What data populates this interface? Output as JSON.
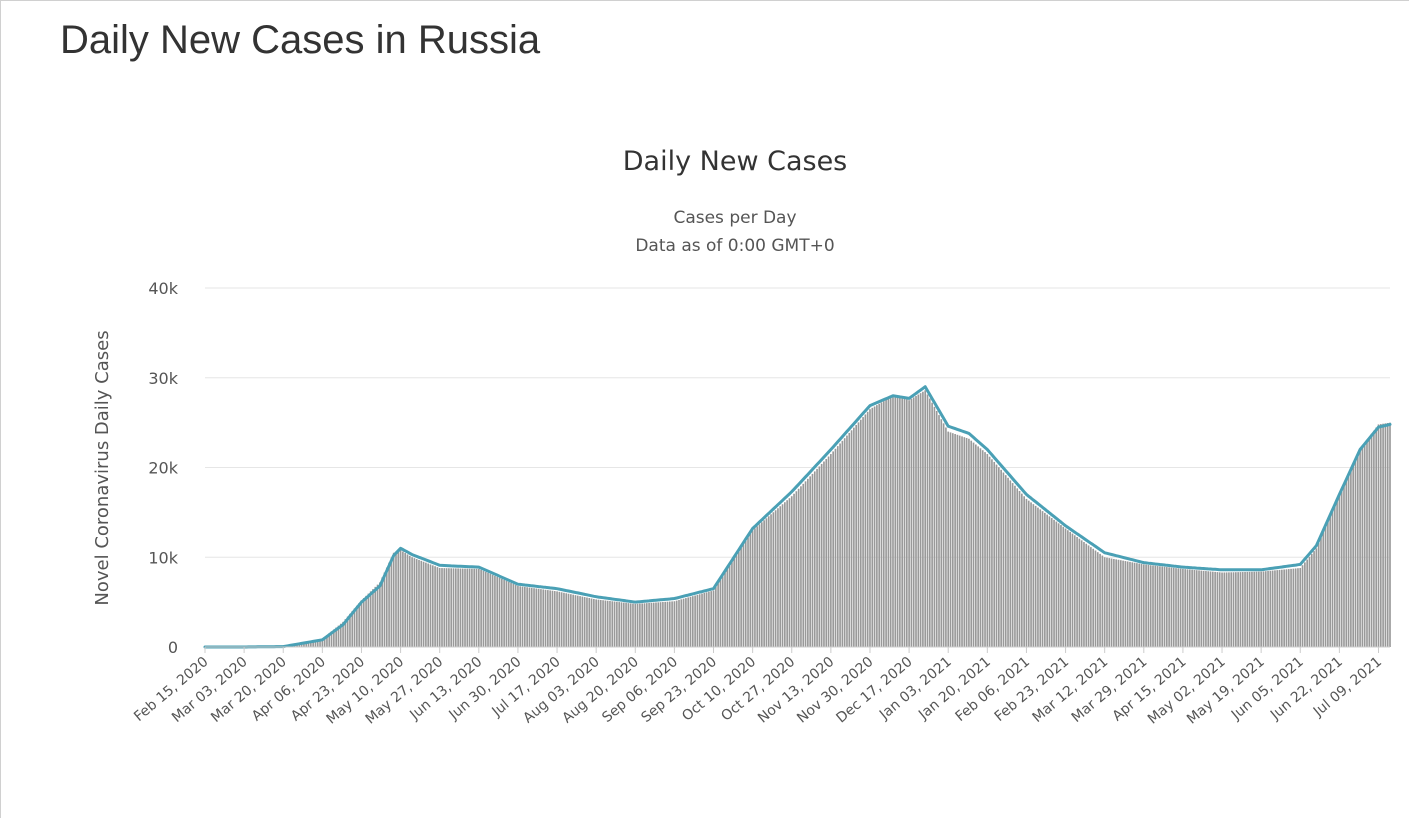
{
  "page": {
    "title": "Daily New Cases in Russia"
  },
  "colors": {
    "bars": "#999999",
    "moving_average": "#4aa0b5",
    "grid": "#e6e6e6"
  },
  "chart_data": {
    "type": "bar",
    "title": "Daily New Cases",
    "subtitle_lines": [
      "Cases per Day",
      "Data as of 0:00 GMT+0"
    ],
    "ylabel": "Novel Coronavirus Daily Cases",
    "xlabel": "",
    "ylim": [
      0,
      40000
    ],
    "y_ticks": [
      0,
      10000,
      20000,
      30000,
      40000
    ],
    "y_tick_labels": [
      "0",
      "10k",
      "20k",
      "30k",
      "40k"
    ],
    "grid": true,
    "legend": "none",
    "x_start": "Feb 15, 2020",
    "x_end": "Jul 14, 2021",
    "x_tick_labels": [
      "Feb 15, 2020",
      "Mar 03, 2020",
      "Mar 20, 2020",
      "Apr 06, 2020",
      "Apr 23, 2020",
      "May 10, 2020",
      "May 27, 2020",
      "Jun 13, 2020",
      "Jun 30, 2020",
      "Jul 17, 2020",
      "Aug 03, 2020",
      "Aug 20, 2020",
      "Sep 06, 2020",
      "Sep 23, 2020",
      "Oct 10, 2020",
      "Oct 27, 2020",
      "Nov 13, 2020",
      "Nov 30, 2020",
      "Dec 17, 2020",
      "Jan 03, 2021",
      "Jan 20, 2021",
      "Feb 06, 2021",
      "Feb 23, 2021",
      "Mar 12, 2021",
      "Mar 29, 2021",
      "Apr 15, 2021",
      "May 02, 2021",
      "May 19, 2021",
      "Jun 05, 2021",
      "Jun 22, 2021",
      "Jul 09, 2021"
    ],
    "series": [
      {
        "type": "bar",
        "note": "daily new cases, approximate values read at the date ticks, interpolated daily",
        "x": [
          "Feb 15, 2020",
          "Mar 03, 2020",
          "Mar 20, 2020",
          "Apr 06, 2020",
          "Apr 15, 2020",
          "Apr 23, 2020",
          "May 01, 2020",
          "May 07, 2020",
          "May 10, 2020",
          "May 15, 2020",
          "May 27, 2020",
          "Jun 13, 2020",
          "Jun 30, 2020",
          "Jul 17, 2020",
          "Aug 03, 2020",
          "Aug 20, 2020",
          "Sep 06, 2020",
          "Sep 23, 2020",
          "Oct 10, 2020",
          "Oct 27, 2020",
          "Nov 13, 2020",
          "Nov 30, 2020",
          "Dec 10, 2020",
          "Dec 17, 2020",
          "Dec 24, 2020",
          "Jan 03, 2021",
          "Jan 12, 2021",
          "Jan 20, 2021",
          "Feb 06, 2021",
          "Feb 23, 2021",
          "Mar 12, 2021",
          "Mar 29, 2021",
          "Apr 15, 2021",
          "May 02, 2021",
          "May 19, 2021",
          "Jun 05, 2021",
          "Jun 12, 2021",
          "Jun 22, 2021",
          "Jul 01, 2021",
          "Jul 09, 2021",
          "Jul 14, 2021"
        ],
        "values": [
          0,
          0,
          50,
          900,
          2800,
          5200,
          7200,
          10500,
          10800,
          10000,
          8800,
          8700,
          6800,
          6200,
          5300,
          4800,
          5100,
          6300,
          13000,
          16800,
          21500,
          26500,
          28000,
          27500,
          28600,
          24000,
          23200,
          21500,
          16500,
          13200,
          10000,
          9200,
          8700,
          8300,
          8400,
          8800,
          11000,
          17000,
          22000,
          24800,
          25000
        ]
      },
      {
        "type": "line",
        "note": "7-day moving average",
        "x": [
          "Feb 15, 2020",
          "Mar 03, 2020",
          "Mar 20, 2020",
          "Apr 06, 2020",
          "Apr 15, 2020",
          "Apr 23, 2020",
          "May 01, 2020",
          "May 07, 2020",
          "May 10, 2020",
          "May 15, 2020",
          "May 27, 2020",
          "Jun 13, 2020",
          "Jun 30, 2020",
          "Jul 17, 2020",
          "Aug 03, 2020",
          "Aug 20, 2020",
          "Sep 06, 2020",
          "Sep 23, 2020",
          "Oct 10, 2020",
          "Oct 27, 2020",
          "Nov 13, 2020",
          "Nov 30, 2020",
          "Dec 10, 2020",
          "Dec 17, 2020",
          "Dec 24, 2020",
          "Jan 03, 2021",
          "Jan 12, 2021",
          "Jan 20, 2021",
          "Feb 06, 2021",
          "Feb 23, 2021",
          "Mar 12, 2021",
          "Mar 29, 2021",
          "Apr 15, 2021",
          "May 02, 2021",
          "May 19, 2021",
          "Jun 05, 2021",
          "Jun 12, 2021",
          "Jun 22, 2021",
          "Jul 01, 2021",
          "Jul 09, 2021",
          "Jul 14, 2021"
        ],
        "values": [
          0,
          0,
          50,
          800,
          2500,
          5000,
          6800,
          10200,
          11000,
          10300,
          9100,
          8900,
          7000,
          6500,
          5600,
          5000,
          5400,
          6500,
          13200,
          17300,
          22000,
          26900,
          28000,
          27700,
          29000,
          24600,
          23800,
          22000,
          17000,
          13500,
          10500,
          9400,
          8900,
          8600,
          8600,
          9200,
          11300,
          17000,
          22000,
          24500,
          24800
        ]
      }
    ]
  }
}
